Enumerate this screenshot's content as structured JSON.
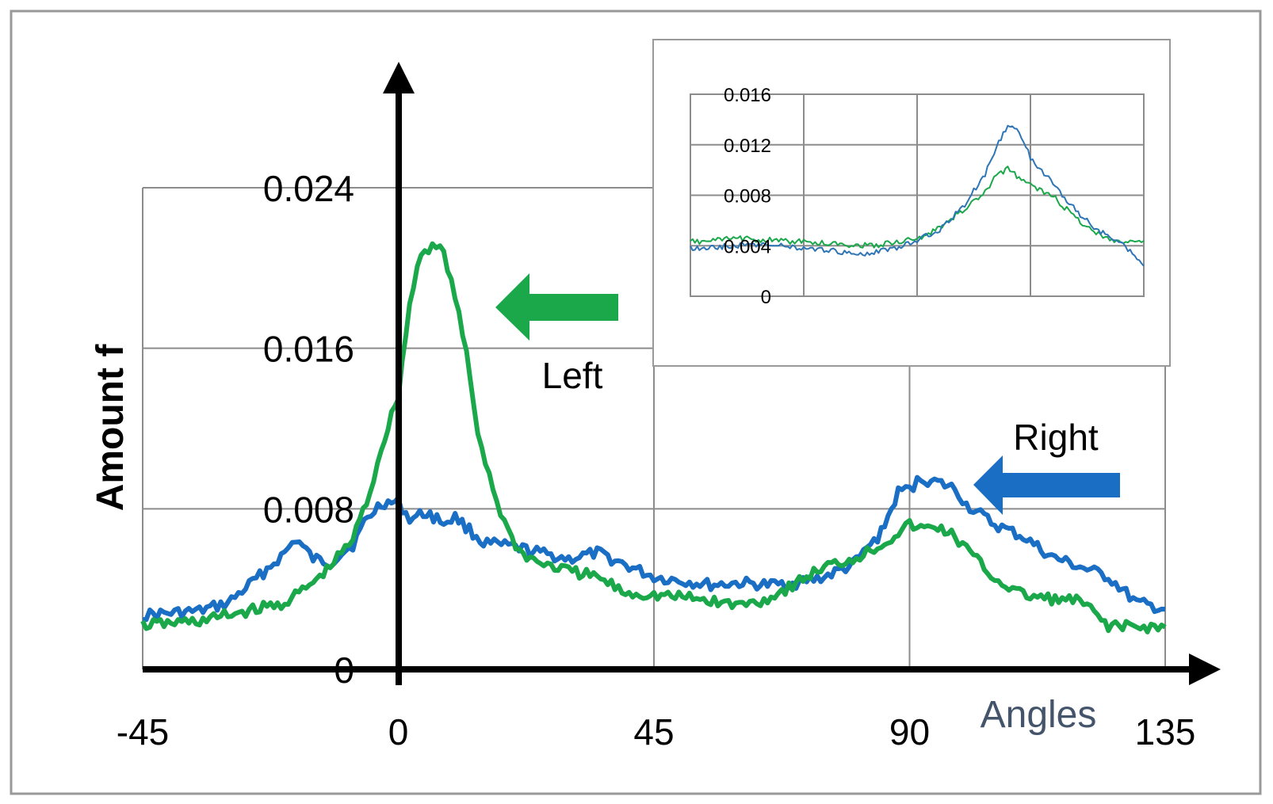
{
  "chart_data": [
    {
      "type": "line",
      "xlabel": "Angles",
      "ylabel": "Amount f",
      "xlim": [
        -45,
        135
      ],
      "ylim": [
        0,
        0.024
      ],
      "xticks": [
        "-45",
        "0",
        "45",
        "90",
        "135"
      ],
      "yticks": [
        "0",
        "0.008",
        "0.016",
        "0.024"
      ],
      "grid": true,
      "annotations": [
        "Left",
        "Right"
      ],
      "series": [
        {
          "name": "Left",
          "color": "#1aa84b",
          "x": [
            -45,
            -40,
            -35,
            -30,
            -25,
            -20,
            -15,
            -12,
            -10,
            -8,
            -5,
            -3,
            0,
            2,
            4,
            6,
            8,
            10,
            12,
            14,
            16,
            18,
            20,
            22,
            25,
            30,
            35,
            40,
            45,
            50,
            55,
            60,
            65,
            70,
            75,
            80,
            85,
            88,
            90,
            92,
            95,
            98,
            100,
            105,
            110,
            115,
            120,
            125,
            130,
            135
          ],
          "values": [
            0.0022,
            0.0023,
            0.0024,
            0.0027,
            0.003,
            0.0033,
            0.0043,
            0.0051,
            0.0058,
            0.0065,
            0.0088,
            0.011,
            0.0137,
            0.0182,
            0.0208,
            0.0211,
            0.0208,
            0.0185,
            0.0157,
            0.0118,
            0.0097,
            0.0078,
            0.0065,
            0.0057,
            0.0053,
            0.0049,
            0.0046,
            0.0038,
            0.0037,
            0.0036,
            0.0034,
            0.0032,
            0.0035,
            0.0043,
            0.0051,
            0.0055,
            0.0062,
            0.0068,
            0.0072,
            0.007,
            0.0071,
            0.0066,
            0.006,
            0.0045,
            0.0037,
            0.0035,
            0.0034,
            0.0022,
            0.0021,
            0.0021
          ]
        },
        {
          "name": "Right",
          "color": "#1a6fc4",
          "x": [
            -45,
            -40,
            -35,
            -30,
            -25,
            -20,
            -18,
            -15,
            -12,
            -10,
            -8,
            -6,
            -3,
            0,
            2,
            5,
            8,
            10,
            15,
            20,
            25,
            30,
            35,
            40,
            45,
            50,
            55,
            60,
            65,
            70,
            75,
            80,
            85,
            88,
            90,
            92,
            95,
            98,
            100,
            105,
            110,
            115,
            120,
            125,
            130,
            135
          ],
          "values": [
            0.0027,
            0.0028,
            0.0029,
            0.0033,
            0.0045,
            0.0058,
            0.0065,
            0.0055,
            0.0053,
            0.0058,
            0.0062,
            0.0073,
            0.0083,
            0.0083,
            0.0075,
            0.0078,
            0.0073,
            0.0076,
            0.0063,
            0.0061,
            0.0058,
            0.0055,
            0.0058,
            0.0052,
            0.0046,
            0.0044,
            0.0042,
            0.0043,
            0.0042,
            0.0043,
            0.0046,
            0.0052,
            0.0068,
            0.0088,
            0.009,
            0.0095,
            0.0093,
            0.009,
            0.0082,
            0.0072,
            0.0066,
            0.0056,
            0.0051,
            0.0046,
            0.0033,
            0.003
          ]
        }
      ]
    },
    {
      "type": "line",
      "xlim": [
        0,
        4
      ],
      "ylim": [
        0,
        0.016
      ],
      "yticks": [
        "0",
        "0.004",
        "0.008",
        "0.012",
        "0.016"
      ],
      "grid": true,
      "series": [
        {
          "color": "#1aa84b",
          "x": [
            0,
            0.2,
            0.4,
            0.6,
            0.8,
            1.0,
            1.2,
            1.4,
            1.6,
            1.8,
            2.0,
            2.2,
            2.4,
            2.6,
            2.7,
            2.8,
            2.9,
            3.0,
            3.2,
            3.4,
            3.6,
            3.8,
            4.0
          ],
          "values": [
            0.0043,
            0.0044,
            0.0046,
            0.0045,
            0.0044,
            0.0043,
            0.0042,
            0.0041,
            0.004,
            0.0043,
            0.0045,
            0.0054,
            0.0068,
            0.0082,
            0.0096,
            0.0101,
            0.0094,
            0.0088,
            0.0079,
            0.0062,
            0.0049,
            0.0043,
            0.0044
          ]
        },
        {
          "color": "#2e75b6",
          "x": [
            0,
            0.2,
            0.4,
            0.6,
            0.8,
            1.0,
            1.2,
            1.4,
            1.6,
            1.8,
            2.0,
            2.2,
            2.4,
            2.6,
            2.7,
            2.8,
            2.9,
            3.0,
            3.2,
            3.4,
            3.6,
            3.8,
            4.0
          ],
          "values": [
            0.0038,
            0.0039,
            0.004,
            0.0041,
            0.004,
            0.0038,
            0.0036,
            0.0035,
            0.0034,
            0.0038,
            0.0044,
            0.0053,
            0.007,
            0.0097,
            0.0118,
            0.0135,
            0.013,
            0.011,
            0.0089,
            0.0068,
            0.0052,
            0.0042,
            0.0024
          ]
        }
      ]
    }
  ]
}
